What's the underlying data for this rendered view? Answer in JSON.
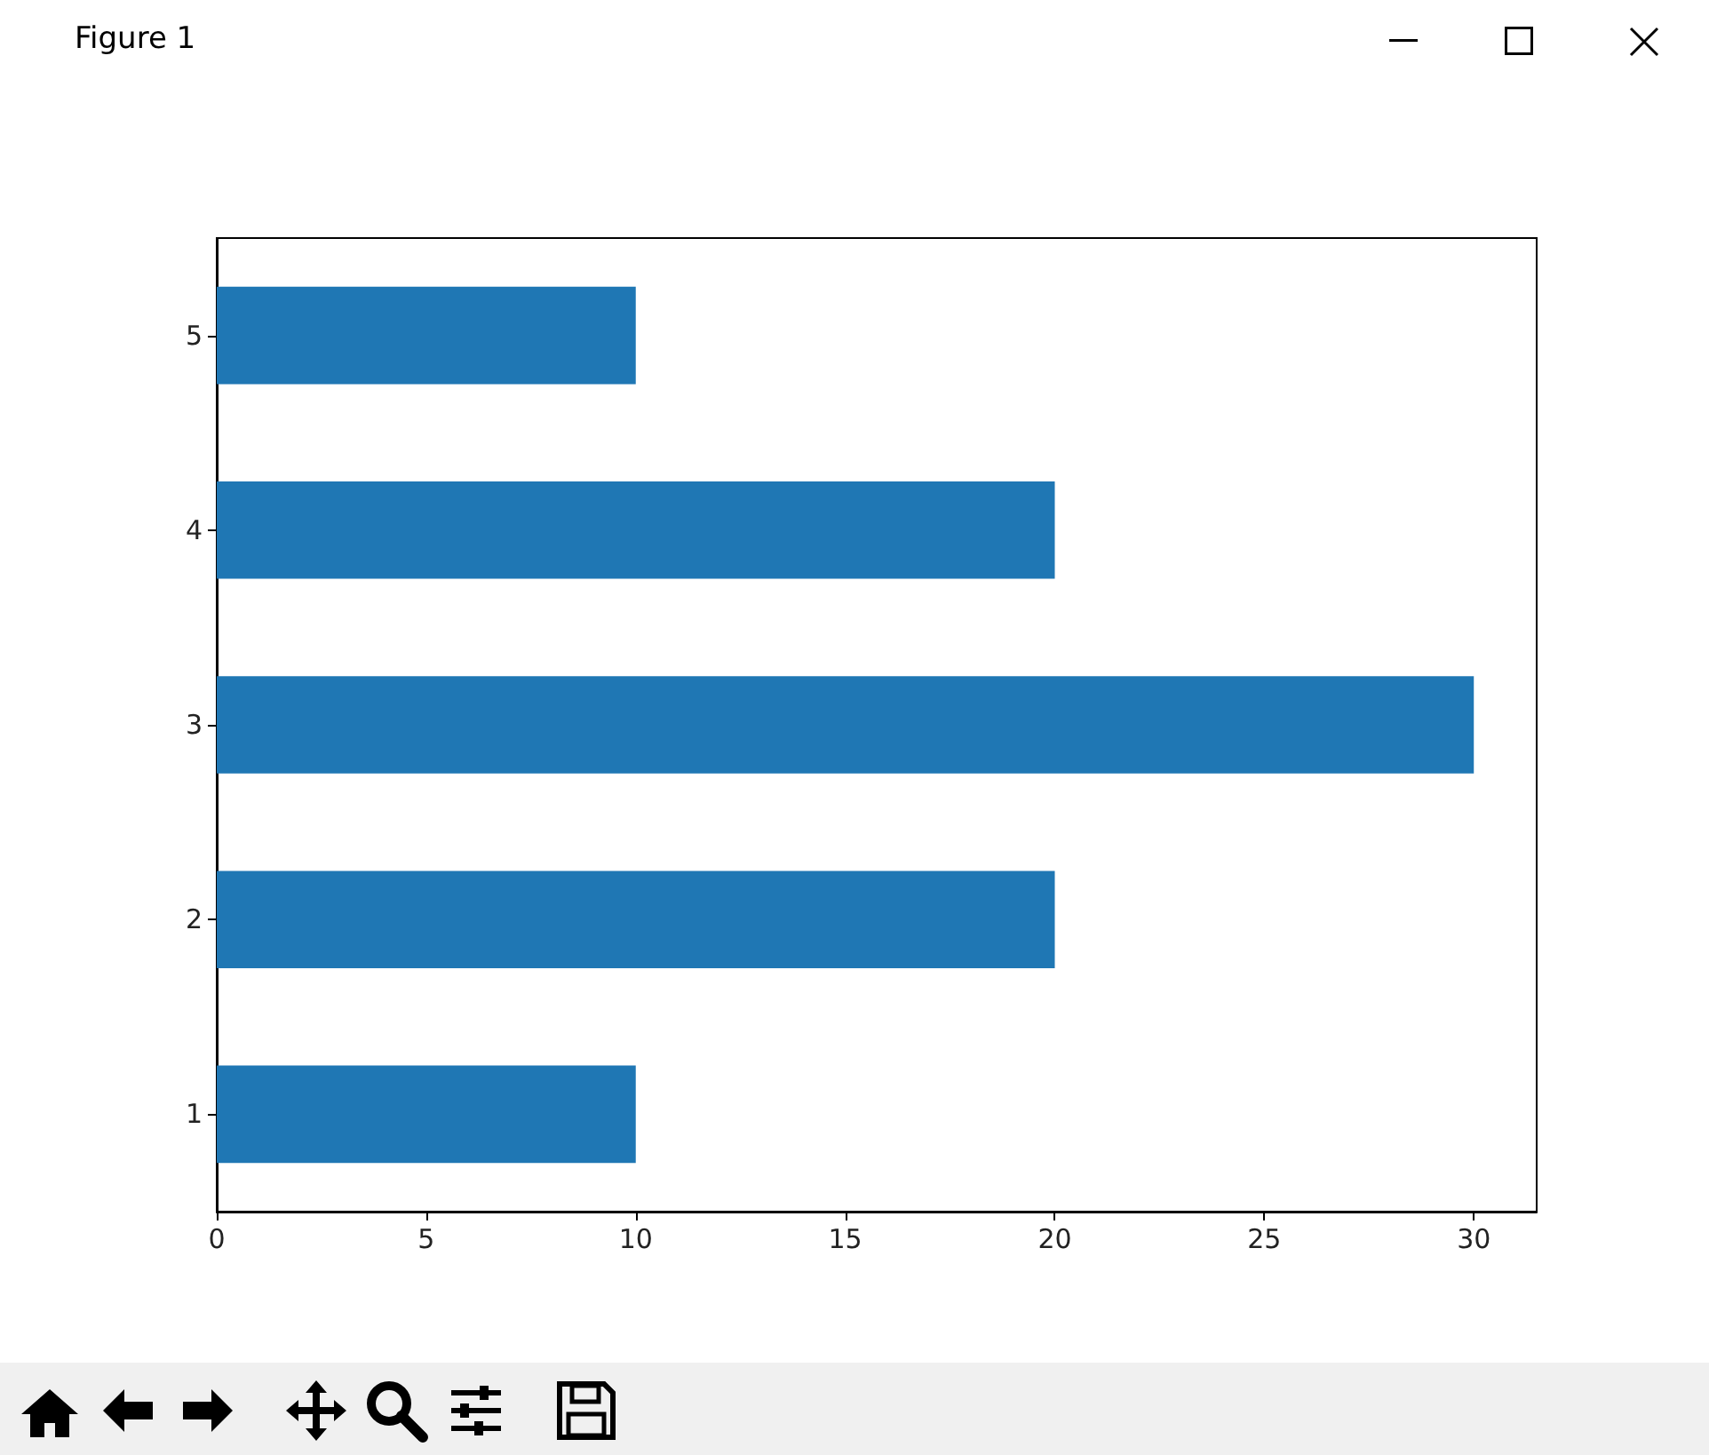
{
  "chart_data": {
    "type": "bar",
    "orientation": "horizontal",
    "categories": [
      "5",
      "4",
      "3",
      "2",
      "1"
    ],
    "values": [
      10,
      20,
      30,
      20,
      10
    ],
    "color": "#1f77b4",
    "xlim": [
      0,
      31.5
    ],
    "xticks": [
      0,
      5,
      10,
      15,
      20,
      25,
      30
    ],
    "grid": false,
    "annotations": [
      "Figure 1"
    ]
  }
}
